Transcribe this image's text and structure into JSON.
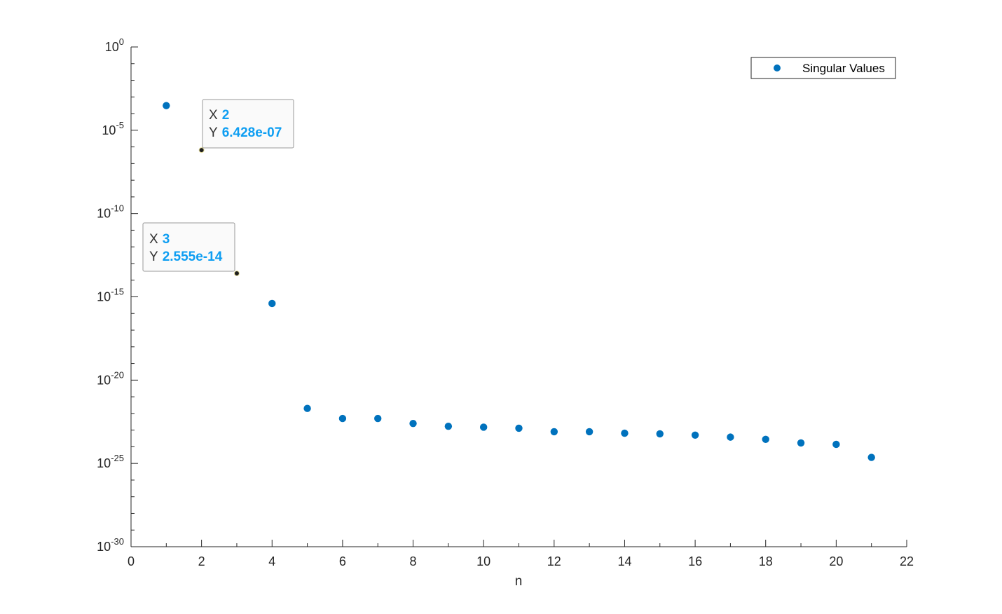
{
  "chart_data": {
    "type": "scatter",
    "title": "",
    "xlabel": "n",
    "ylabel": "",
    "xlim": [
      0,
      22
    ],
    "ylim": [
      1e-30,
      1
    ],
    "yscale": "log",
    "xticks": [
      "0",
      "2",
      "4",
      "6",
      "8",
      "10",
      "12",
      "14",
      "16",
      "18",
      "20",
      "22"
    ],
    "yticks": [
      {
        "base": "10",
        "exp": "0"
      },
      {
        "base": "10",
        "exp": "-5"
      },
      {
        "base": "10",
        "exp": "-10"
      },
      {
        "base": "10",
        "exp": "-15"
      },
      {
        "base": "10",
        "exp": "-20"
      },
      {
        "base": "10",
        "exp": "-25"
      },
      {
        "base": "10",
        "exp": "-30"
      }
    ],
    "grid": false,
    "legend_position": "top-right",
    "color": "#0072bd",
    "series": [
      {
        "name": "Singular Values",
        "x": [
          1,
          2,
          3,
          4,
          5,
          6,
          7,
          8,
          9,
          10,
          11,
          12,
          13,
          14,
          15,
          16,
          17,
          18,
          19,
          20,
          21
        ],
        "y": [
          0.0003,
          6.428e-07,
          2.555e-14,
          4e-16,
          2e-22,
          5e-23,
          5e-23,
          2.5e-23,
          1.7e-23,
          1.5e-23,
          1.3e-23,
          8e-24,
          8e-24,
          6.5e-24,
          6e-24,
          5e-24,
          3.8e-24,
          2.8e-24,
          1.7e-24,
          1.4e-24,
          2.3e-25
        ]
      }
    ],
    "datatips": [
      {
        "x_key": "X",
        "x_value": "2",
        "y_key": "Y",
        "y_value": "6.428e-07",
        "point_x": 2,
        "point_y": 6.428e-07
      },
      {
        "x_key": "X",
        "x_value": "3",
        "y_key": "Y",
        "y_value": "2.555e-14",
        "point_x": 3,
        "point_y": 2.555e-14
      }
    ]
  }
}
